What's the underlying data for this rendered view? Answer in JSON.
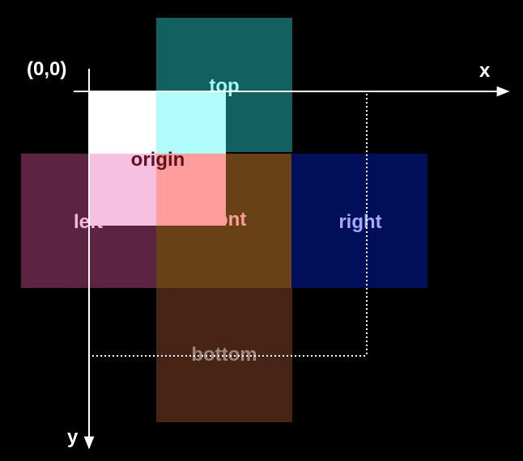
{
  "faces": {
    "top": {
      "label": "top",
      "fill": "#136060",
      "label_color": "#a8f5f5"
    },
    "left": {
      "label": "left",
      "fill": "#5c2440",
      "label_color": "#f5bbd6"
    },
    "front": {
      "label": "front",
      "fill": "#684116",
      "label_color": "#ff9d9d"
    },
    "right": {
      "label": "right",
      "fill": "#010e5a",
      "label_color": "#a5aaf2"
    },
    "bottom": {
      "label": "bottom",
      "fill": "#482416",
      "label_color": "#9d877e"
    }
  },
  "origin": {
    "label": "origin",
    "label_color": "#5e1322",
    "colors": {
      "white": "#ffffff",
      "over_top": "#b0fcfc",
      "over_left": "#f6c1e1",
      "over_front": "#ff9d9d"
    }
  },
  "axes": {
    "origin_label": "(0,0)",
    "x_label": "x",
    "y_label": "y",
    "color": "#ffffff"
  }
}
